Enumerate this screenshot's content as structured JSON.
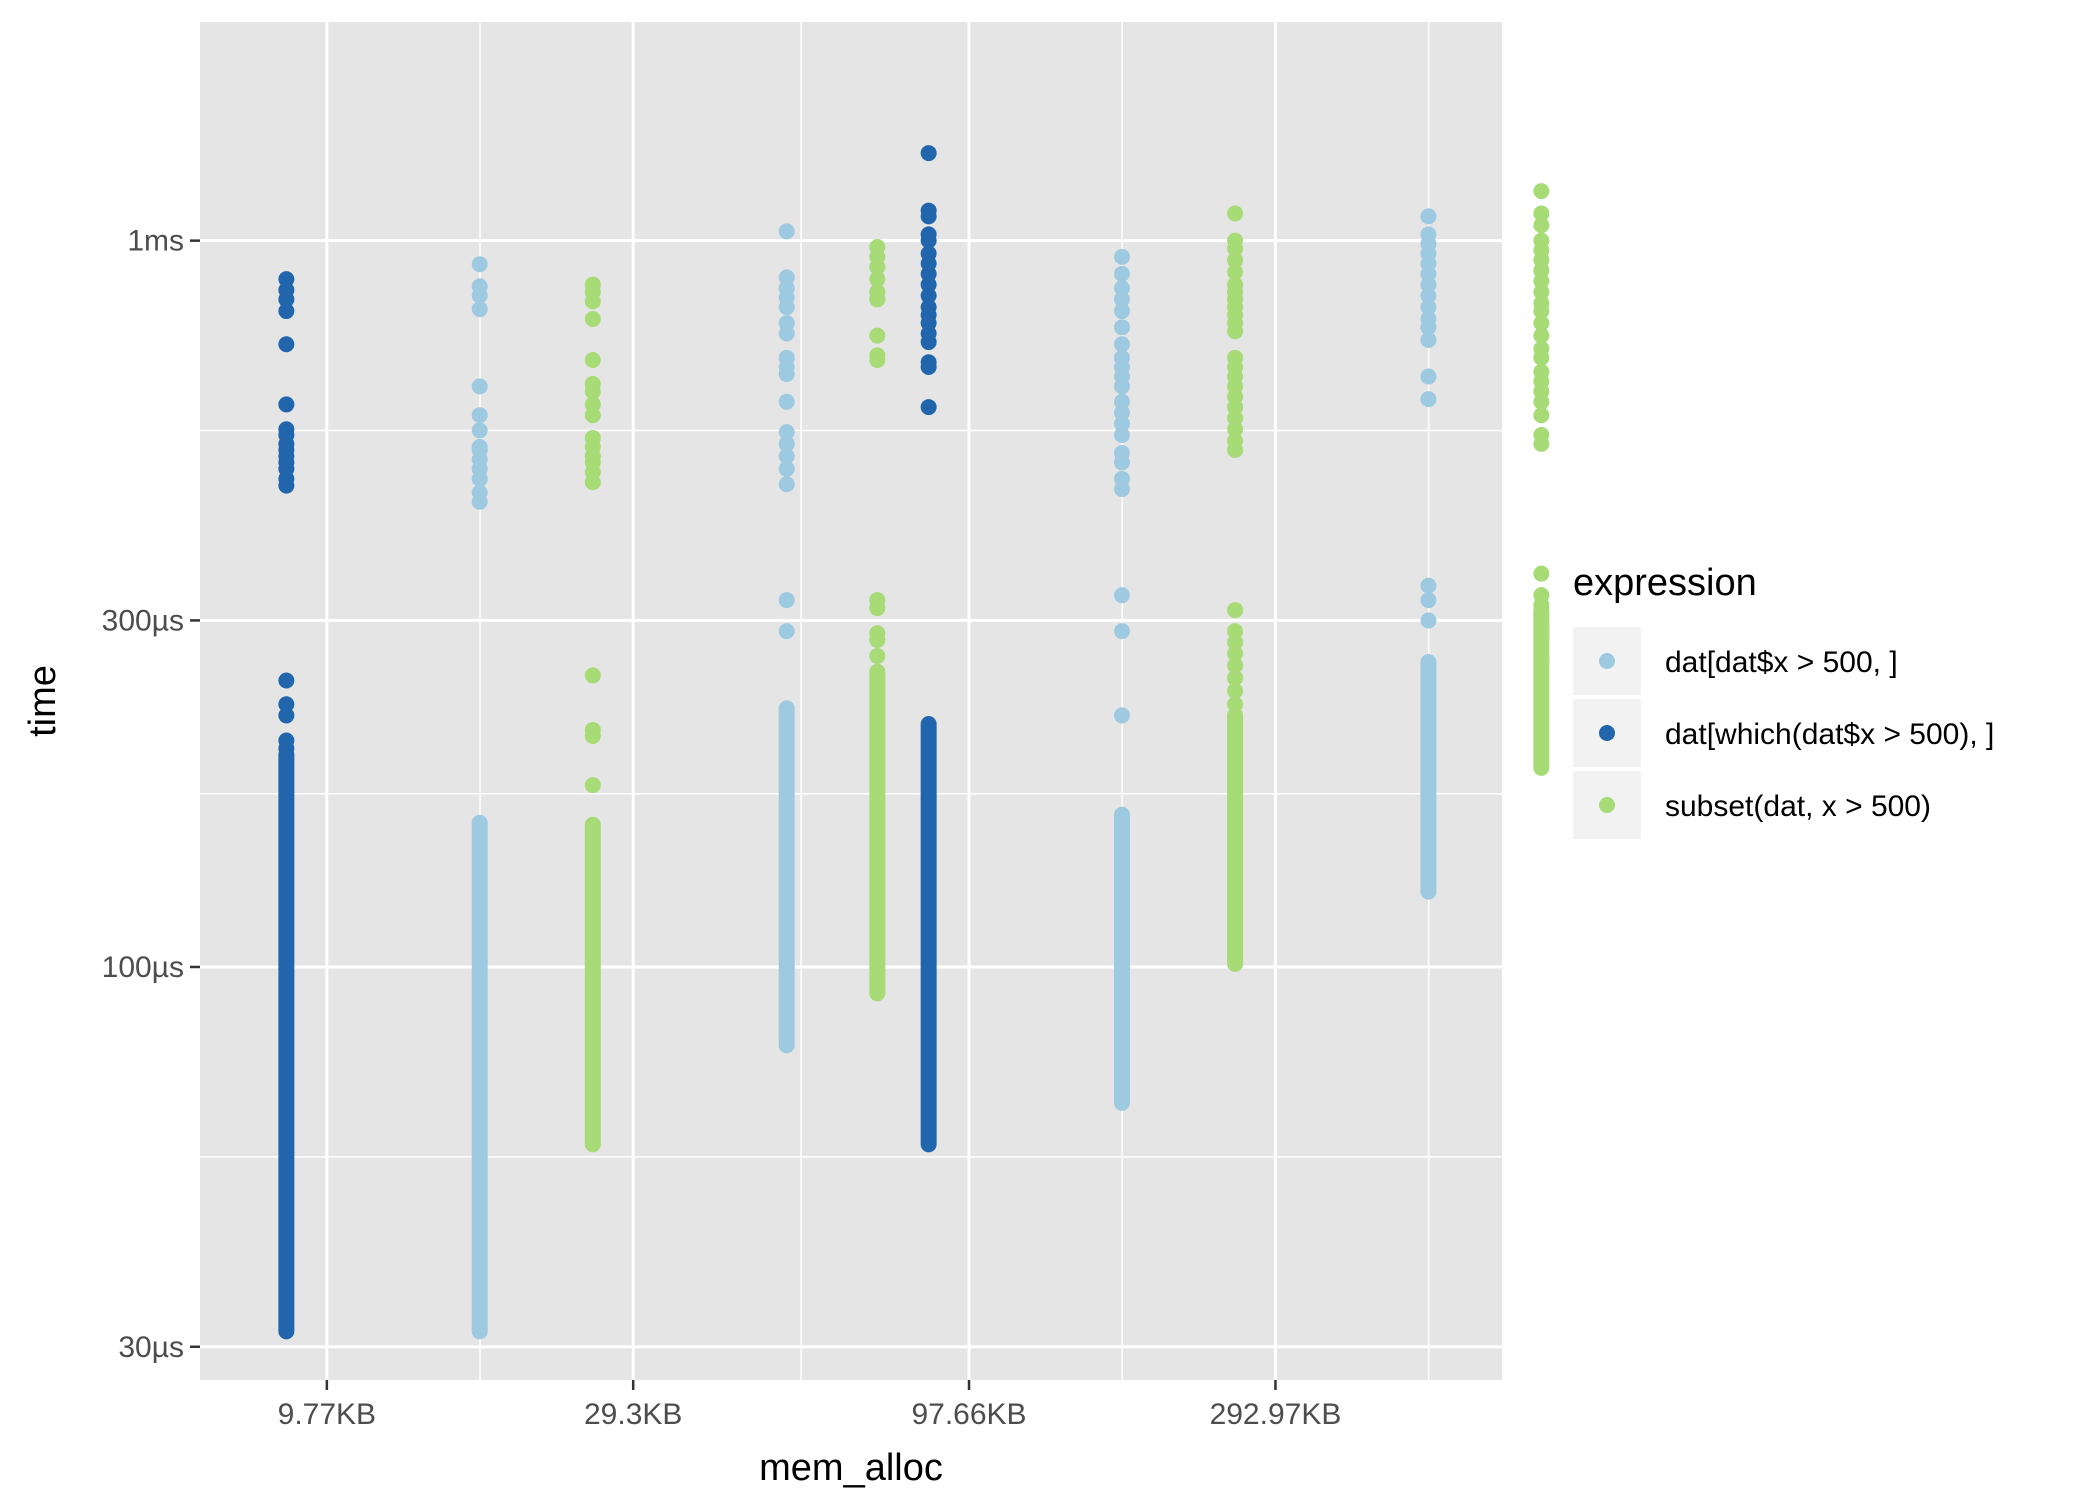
{
  "chart_data": {
    "type": "scatter",
    "title": "",
    "xlabel": "mem_alloc",
    "ylabel": "time",
    "y_scale": "log10",
    "ylim": [
      27,
      2000
    ],
    "x_scale": "log10",
    "xlim": [
      6.2,
      660
    ],
    "x_ticks": [
      {
        "value": 9.77,
        "label": "9.77KB"
      },
      {
        "value": 29.3,
        "label": "29.3KB"
      },
      {
        "value": 97.66,
        "label": "97.66KB"
      },
      {
        "value": 292.97,
        "label": "292.97KB"
      }
    ],
    "y_ticks": [
      {
        "value": 30,
        "label": "30µs"
      },
      {
        "value": 100,
        "label": "100µs"
      },
      {
        "value": 300,
        "label": "300µs"
      },
      {
        "value": 1000,
        "label": "1ms"
      }
    ],
    "y_unit": "µs",
    "x_unit": "KB",
    "grid": true,
    "legend": {
      "title": "expression",
      "position": "right"
    },
    "series": [
      {
        "name": "dat[dat$x > 500, ]",
        "color": "#9ECAE1",
        "groups": [
          {
            "x": 16.9,
            "points": [
              928,
              865,
              840,
              805,
              630,
              575,
              548,
              520,
              515,
              500,
              485,
              470,
              450,
              437
            ],
            "band": [
              31.5,
              158
            ]
          },
          {
            "x": 50.8,
            "points": [
              1030,
              890,
              860,
              835,
              810,
              770,
              745,
              690,
              670,
              655,
              600,
              545,
              525,
              505,
              485,
              462,
              320,
              290
            ],
            "band": [
              78,
              227
            ]
          },
          {
            "x": 169.0,
            "points": [
              950,
              900,
              860,
              830,
              800,
              760,
              720,
              690,
              670,
              650,
              630,
              600,
              580,
              560,
              540,
              510,
              495,
              470,
              455,
              325,
              290,
              222
            ],
            "band": [
              65,
              162
            ]
          },
          {
            "x": 507.0,
            "points": [
              1080,
              1020,
              990,
              960,
              930,
              900,
              870,
              840,
              810,
              780,
              760,
              730,
              650,
              605,
              335,
              320,
              300
            ],
            "band": [
              127,
              263
            ]
          }
        ]
      },
      {
        "name": "dat[which(dat$x > 500), ]",
        "color": "#2166AC",
        "groups": [
          {
            "x": 8.45,
            "points": [
              885,
              855,
              830,
              800,
              720,
              595,
              550,
              540,
              525,
              515,
              505,
              495,
              485,
              470,
              460,
              248,
              230,
              222,
              205,
              200
            ],
            "band": [
              31.5,
              196
            ]
          },
          {
            "x": 84.5,
            "points": [
              1320,
              1100,
              1080,
              1020,
              1000,
              960,
              930,
              900,
              870,
              840,
              810,
              790,
              770,
              745,
              725,
              680,
              670,
              590
            ],
            "band": [
              57,
              216
            ]
          }
        ]
      },
      {
        "name": "subset(dat, x > 500)",
        "color": "#A6DB75",
        "groups": [
          {
            "x": 25.35,
            "points": [
              870,
              850,
              825,
              780,
              685,
              635,
              620,
              595,
              575,
              535,
              520,
              505,
              495,
              480,
              465,
              252,
              212,
              208,
              178
            ],
            "band": [
              57,
              157
            ]
          },
          {
            "x": 70.3,
            "points": [
              980,
              950,
              920,
              885,
              850,
              830,
              740,
              695,
              685,
              320,
              312,
              288,
              282,
              268
            ],
            "band": [
              92,
              255
            ]
          },
          {
            "x": 253.5,
            "points": [
              1090,
              1000,
              975,
              940,
              905,
              870,
              850,
              830,
              810,
              790,
              770,
              750,
              690,
              670,
              650,
              630,
              610,
              590,
              570,
              550,
              530,
              515,
              310,
              290,
              280,
              270,
              260,
              250,
              240,
              230
            ],
            "band": [
              101,
              222
            ]
          },
          {
            "x": 760.0,
            "points": [
              1170,
              1090,
              1050,
              1000,
              970,
              940,
              910,
              880,
              850,
              820,
              800,
              770,
              740,
              710,
              690,
              660,
              640,
              620,
              600,
              575,
              540,
              525,
              348,
              325,
              315,
              305,
              295,
              285,
              275,
              265
            ],
            "band": [
              188,
              310
            ]
          }
        ]
      }
    ]
  }
}
